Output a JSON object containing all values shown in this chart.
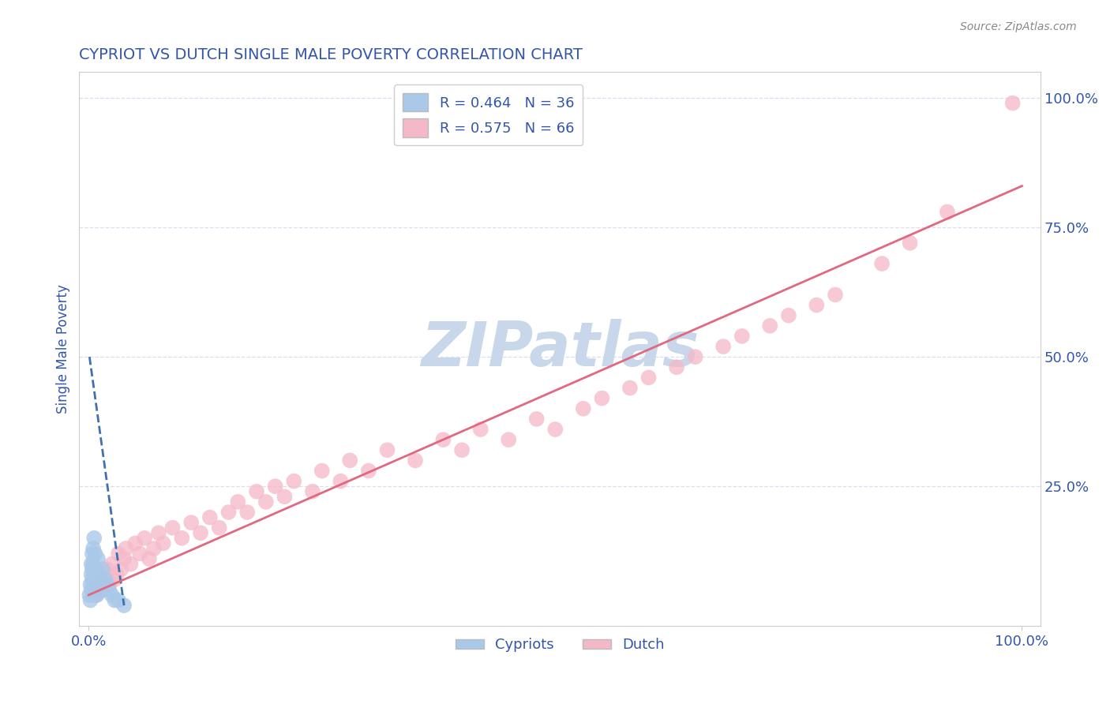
{
  "title": "CYPRIOT VS DUTCH SINGLE MALE POVERTY CORRELATION CHART",
  "source_text": "Source: ZipAtlas.com",
  "ylabel": "Single Male Poverty",
  "right_ytick_labels": [
    "100.0%",
    "75.0%",
    "50.0%",
    "25.0%",
    ""
  ],
  "right_ytick_values": [
    1.0,
    0.75,
    0.5,
    0.25,
    0.0
  ],
  "cypriot_color": "#aac8e8",
  "dutch_color": "#f5b8c8",
  "cypriot_line_color": "#4070b0",
  "dutch_line_color": "#e06880",
  "legend_cypriot": "R = 0.464   N = 36",
  "legend_dutch": "R = 0.575   N = 66",
  "watermark": "ZIPatlas",
  "watermark_color": "#c8d8ea",
  "title_color": "#3355aa",
  "tick_color": "#3355aa",
  "grid_color": "#d8dff0",
  "cypriot_x": [
    0.001,
    0.002,
    0.002,
    0.003,
    0.003,
    0.003,
    0.004,
    0.004,
    0.004,
    0.005,
    0.005,
    0.005,
    0.006,
    0.006,
    0.006,
    0.007,
    0.007,
    0.008,
    0.008,
    0.009,
    0.009,
    0.01,
    0.01,
    0.011,
    0.012,
    0.013,
    0.014,
    0.015,
    0.016,
    0.018,
    0.02,
    0.022,
    0.025,
    0.028,
    0.032,
    0.038
  ],
  "cypriot_y": [
    0.04,
    0.06,
    0.03,
    0.05,
    0.08,
    0.1,
    0.07,
    0.12,
    0.09,
    0.13,
    0.06,
    0.1,
    0.15,
    0.08,
    0.04,
    0.12,
    0.05,
    0.09,
    0.06,
    0.08,
    0.04,
    0.11,
    0.07,
    0.06,
    0.08,
    0.07,
    0.05,
    0.09,
    0.06,
    0.07,
    0.06,
    0.05,
    0.04,
    0.03,
    0.03,
    0.02
  ],
  "dutch_x": [
    0.005,
    0.008,
    0.01,
    0.012,
    0.015,
    0.018,
    0.02,
    0.022,
    0.025,
    0.028,
    0.03,
    0.032,
    0.035,
    0.038,
    0.04,
    0.045,
    0.05,
    0.055,
    0.06,
    0.065,
    0.07,
    0.075,
    0.08,
    0.09,
    0.1,
    0.11,
    0.12,
    0.13,
    0.14,
    0.15,
    0.16,
    0.17,
    0.18,
    0.19,
    0.2,
    0.21,
    0.22,
    0.24,
    0.25,
    0.27,
    0.28,
    0.3,
    0.32,
    0.35,
    0.38,
    0.4,
    0.42,
    0.45,
    0.48,
    0.5,
    0.53,
    0.55,
    0.58,
    0.6,
    0.63,
    0.65,
    0.68,
    0.7,
    0.73,
    0.75,
    0.78,
    0.8,
    0.85,
    0.88,
    0.92,
    0.99
  ],
  "dutch_y": [
    0.05,
    0.04,
    0.06,
    0.08,
    0.05,
    0.07,
    0.09,
    0.06,
    0.1,
    0.07,
    0.08,
    0.12,
    0.09,
    0.11,
    0.13,
    0.1,
    0.14,
    0.12,
    0.15,
    0.11,
    0.13,
    0.16,
    0.14,
    0.17,
    0.15,
    0.18,
    0.16,
    0.19,
    0.17,
    0.2,
    0.22,
    0.2,
    0.24,
    0.22,
    0.25,
    0.23,
    0.26,
    0.24,
    0.28,
    0.26,
    0.3,
    0.28,
    0.32,
    0.3,
    0.34,
    0.32,
    0.36,
    0.34,
    0.38,
    0.36,
    0.4,
    0.42,
    0.44,
    0.46,
    0.48,
    0.5,
    0.52,
    0.54,
    0.56,
    0.58,
    0.6,
    0.62,
    0.68,
    0.72,
    0.78,
    0.99
  ],
  "cypriot_line_x": [
    0.001,
    0.038
  ],
  "cypriot_line_y": [
    0.5,
    0.02
  ],
  "dutch_line_x": [
    0.0,
    1.0
  ],
  "dutch_line_y": [
    0.04,
    0.83
  ],
  "xlim": [
    -0.01,
    1.02
  ],
  "ylim": [
    -0.02,
    1.05
  ],
  "background_color": "#ffffff"
}
